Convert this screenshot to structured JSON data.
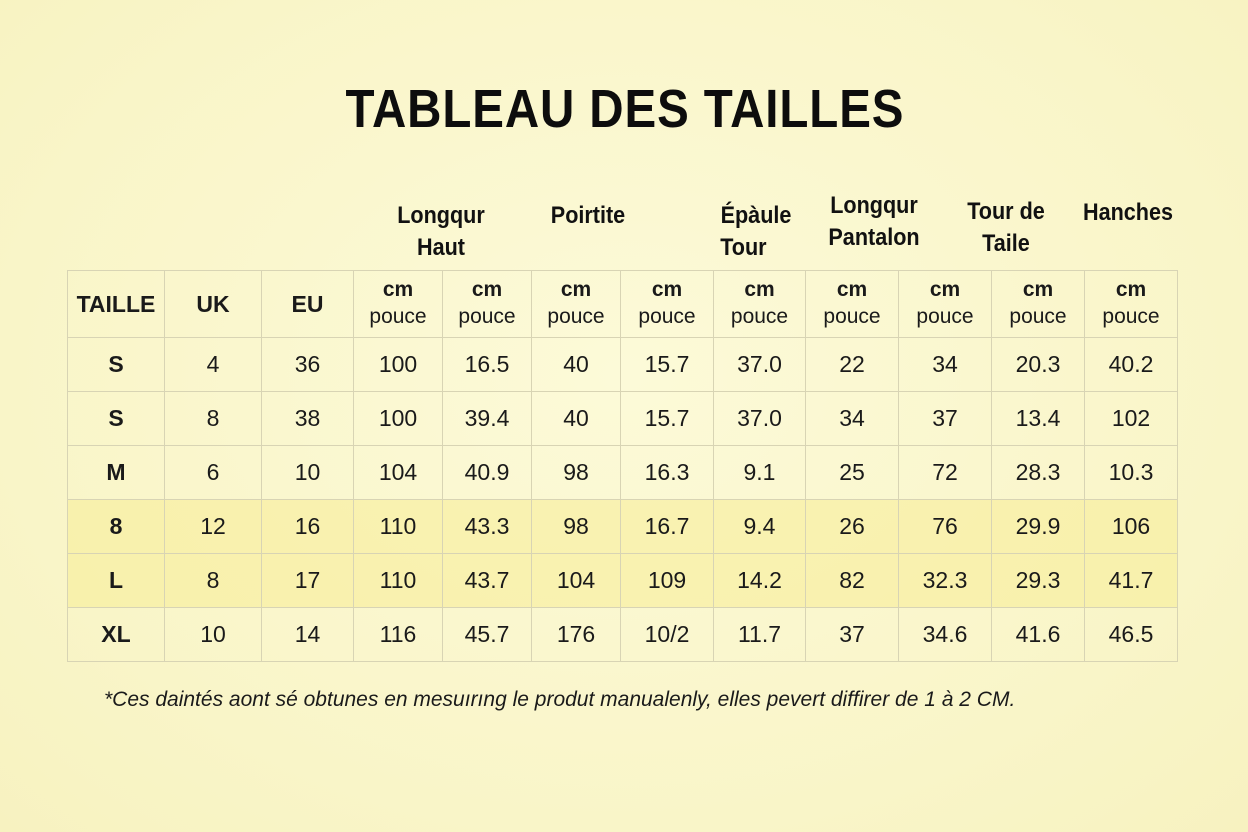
{
  "title": "TABLEAU DES TAILLES",
  "group_headers": [
    {
      "line1": "Longqur",
      "line2": "Haut"
    },
    {
      "line1": "Poirtite",
      "line2": ""
    },
    {
      "line1": "Épàule",
      "line2": "Tour"
    },
    {
      "line1": "Longqur",
      "line2": "Pantalon"
    },
    {
      "line1": "Tour de",
      "line2": "Taile"
    },
    {
      "line1": "Hanches",
      "line2": ""
    }
  ],
  "columns": {
    "size": "TAILLE",
    "uk": "UK",
    "eu": "EU",
    "unit_cm": "cm",
    "unit_in": "pouce"
  },
  "rows": [
    {
      "size": "S",
      "uk": "4",
      "eu": "36",
      "values": [
        "100",
        "16.5",
        "40",
        "15.7",
        "37.0",
        "22",
        "34",
        "20.3",
        "40.2"
      ],
      "highlight": false
    },
    {
      "size": "S",
      "uk": "8",
      "eu": "38",
      "values": [
        "100",
        "39.4",
        "40",
        "15.7",
        "37.0",
        "34",
        "37",
        "13.4",
        "102"
      ],
      "highlight": false
    },
    {
      "size": "M",
      "uk": "6",
      "eu": "10",
      "values": [
        "104",
        "40.9",
        "98",
        "16.3",
        "9.1",
        "25",
        "72",
        "28.3",
        "10.3"
      ],
      "highlight": false
    },
    {
      "size": "8",
      "uk": "12",
      "eu": "16",
      "values": [
        "110",
        "43.3",
        "98",
        "16.7",
        "9.4",
        "26",
        "76",
        "29.9",
        "106"
      ],
      "highlight": true
    },
    {
      "size": "L",
      "uk": "8",
      "eu": "17",
      "values": [
        "110",
        "43.7",
        "104",
        "109",
        "14.2",
        "82",
        "32.3",
        "29.3",
        "41.7"
      ],
      "highlight": true
    },
    {
      "size": "XL",
      "uk": "10",
      "eu": "14",
      "values": [
        "116",
        "45.7",
        "176",
        "10/2",
        "11.7",
        "37",
        "34.6",
        "41.6",
        "46.5"
      ],
      "highlight": false
    }
  ],
  "footnote": "*Ces daintés aont sé obtunes en mesuırıng le produt manualenly, elles pevert diffirer de 1 à 2 CM.",
  "colors": {
    "background": "#fbf8d0",
    "highlight_row": "#f8ec96",
    "border": "#d8d4b4"
  }
}
